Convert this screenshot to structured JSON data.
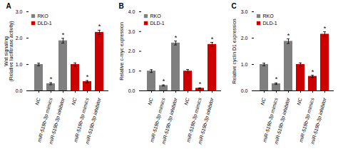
{
  "chart_data": [
    {
      "type": "bar",
      "title": "A",
      "ylabel": "Wnt signaling\n(Relative luciferase activity)",
      "categories": [
        "NC",
        "miR-519b-3p mimics",
        "miR-519b-3p inhibitor",
        "NC",
        "miR-519b-3p mimics",
        "miR-519b-3p inhibitor"
      ],
      "ylim": [
        0,
        3
      ],
      "yticks": [
        0,
        1,
        2,
        3
      ],
      "legend": "upper left",
      "grid": false,
      "series": [
        {
          "name": "RKO",
          "color": "#7f7f7f",
          "values": [
            1.0,
            0.27,
            1.9,
            null,
            null,
            null
          ],
          "errors": [
            0.05,
            0.04,
            0.09,
            null,
            null,
            null
          ],
          "annotations": [
            null,
            "*",
            "*",
            null,
            null,
            null
          ]
        },
        {
          "name": "DLD-1",
          "color": "#cc0000",
          "values": [
            null,
            null,
            null,
            1.0,
            0.35,
            2.22
          ],
          "errors": [
            null,
            null,
            null,
            0.06,
            0.04,
            0.08
          ],
          "annotations": [
            null,
            null,
            null,
            null,
            "*",
            "*"
          ]
        }
      ]
    },
    {
      "type": "bar",
      "title": "B",
      "ylabel": "Relative c-myc expression",
      "categories": [
        "NC",
        "miR-519b-3p mimics",
        "miR-519b-3p inhibitor",
        "NC",
        "miR-519b-3p mimics",
        "miR-519b-3p inhibitor"
      ],
      "ylim": [
        0,
        4
      ],
      "yticks": [
        0,
        1,
        2,
        3,
        4
      ],
      "legend": "upper left",
      "grid": false,
      "series": [
        {
          "name": "RKO",
          "color": "#7f7f7f",
          "values": [
            1.0,
            0.27,
            2.42,
            null,
            null,
            null
          ],
          "errors": [
            0.07,
            0.03,
            0.1,
            null,
            null,
            null
          ],
          "annotations": [
            null,
            "*",
            "*",
            null,
            null,
            null
          ]
        },
        {
          "name": "DLD-1",
          "color": "#cc0000",
          "values": [
            null,
            null,
            null,
            1.0,
            0.13,
            2.35
          ],
          "errors": [
            null,
            null,
            null,
            0.08,
            0.02,
            0.1
          ],
          "annotations": [
            null,
            null,
            null,
            null,
            "*",
            "*"
          ]
        }
      ]
    },
    {
      "type": "bar",
      "title": "C",
      "ylabel": "Relative cyclin D1 expression",
      "categories": [
        "NC",
        "miR-519b-3p mimics",
        "miR-519b-3p inhibitor",
        "NC",
        "miR-519b-3p mimics",
        "miR-519b-3p inhibitor"
      ],
      "ylim": [
        0,
        3
      ],
      "yticks": [
        0,
        1,
        2,
        3
      ],
      "legend": "upper left",
      "grid": false,
      "series": [
        {
          "name": "RKO",
          "color": "#7f7f7f",
          "values": [
            1.0,
            0.27,
            1.88,
            null,
            null,
            null
          ],
          "errors": [
            0.05,
            0.03,
            0.09,
            null,
            null,
            null
          ],
          "annotations": [
            null,
            "*",
            "*",
            null,
            null,
            null
          ]
        },
        {
          "name": "DLD-1",
          "color": "#cc0000",
          "values": [
            null,
            null,
            null,
            1.0,
            0.55,
            2.15
          ],
          "errors": [
            null,
            null,
            null,
            0.06,
            0.04,
            0.09
          ],
          "annotations": [
            null,
            null,
            null,
            null,
            "*",
            "*"
          ]
        }
      ]
    }
  ]
}
